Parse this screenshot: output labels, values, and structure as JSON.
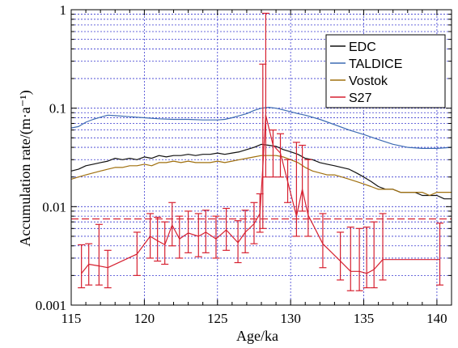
{
  "chart_data": {
    "type": "line",
    "xlabel": "Age/ka",
    "ylabel": "Accumulation rate/(m·a⁻¹)",
    "xlim": [
      115,
      141
    ],
    "ylim": [
      0.001,
      1
    ],
    "yscale": "log",
    "grid": true,
    "legend_position": "top-right",
    "x_ticks": [
      115,
      120,
      125,
      130,
      135,
      140
    ],
    "x_tick_labels": [
      "115",
      "120",
      "125",
      "130",
      "135",
      "140"
    ],
    "y_ticks": [
      0.001,
      0.01,
      0.1,
      1
    ],
    "y_tick_labels": [
      "0.001",
      "0.01",
      "0.1",
      "1"
    ],
    "reference_line": {
      "y": 0.0075,
      "color": "#d62030"
    },
    "series": [
      {
        "name": "EDC",
        "color": "#111111",
        "x": [
          115,
          115.5,
          116,
          116.5,
          117,
          117.5,
          118,
          118.5,
          119,
          119.5,
          120,
          120.5,
          121,
          121.5,
          122,
          122.5,
          123,
          123.5,
          124,
          124.5,
          125,
          125.5,
          126,
          126.5,
          127,
          127.5,
          128,
          128.5,
          129,
          129.5,
          130,
          130.5,
          131,
          131.5,
          132,
          132.5,
          133,
          133.5,
          134,
          134.5,
          135,
          135.5,
          136,
          136.5,
          137,
          137.5,
          138,
          138.5,
          139,
          139.5,
          140,
          140.5,
          141
        ],
        "values": [
          0.023,
          0.024,
          0.026,
          0.027,
          0.028,
          0.029,
          0.031,
          0.03,
          0.031,
          0.03,
          0.032,
          0.031,
          0.033,
          0.032,
          0.033,
          0.033,
          0.034,
          0.033,
          0.034,
          0.034,
          0.035,
          0.034,
          0.035,
          0.036,
          0.038,
          0.04,
          0.043,
          0.042,
          0.041,
          0.038,
          0.036,
          0.034,
          0.031,
          0.03,
          0.028,
          0.027,
          0.026,
          0.025,
          0.024,
          0.022,
          0.02,
          0.018,
          0.016,
          0.015,
          0.015,
          0.014,
          0.014,
          0.014,
          0.013,
          0.013,
          0.013,
          0.012,
          0.012
        ]
      },
      {
        "name": "TALDICE",
        "color": "#3d6bb3",
        "x": [
          115,
          115.5,
          116,
          116.5,
          117,
          117.5,
          118,
          119,
          120,
          121,
          122,
          123,
          124,
          125,
          125.5,
          126,
          126.5,
          127,
          127.5,
          128,
          128.5,
          129,
          129.5,
          130,
          130.5,
          131,
          132,
          133,
          134,
          135,
          136,
          137,
          138,
          139,
          140,
          141
        ],
        "values": [
          0.063,
          0.065,
          0.072,
          0.077,
          0.081,
          0.085,
          0.084,
          0.082,
          0.08,
          0.078,
          0.077,
          0.077,
          0.076,
          0.076,
          0.077,
          0.08,
          0.084,
          0.088,
          0.095,
          0.1,
          0.102,
          0.1,
          0.096,
          0.092,
          0.088,
          0.085,
          0.077,
          0.068,
          0.06,
          0.054,
          0.048,
          0.043,
          0.04,
          0.039,
          0.039,
          0.04
        ]
      },
      {
        "name": "Vostok",
        "color": "#a0700f",
        "x": [
          115,
          115.5,
          116,
          116.5,
          117,
          117.5,
          118,
          118.5,
          119,
          119.5,
          120,
          120.5,
          121,
          121.5,
          122,
          122.5,
          123,
          123.5,
          124,
          124.5,
          125,
          125.5,
          126,
          126.5,
          127,
          127.5,
          128,
          128.5,
          129,
          129.5,
          130,
          130.5,
          131,
          131.5,
          132,
          132.5,
          133,
          133.5,
          134,
          134.5,
          135,
          135.5,
          136,
          136.5,
          137,
          137.5,
          138,
          138.5,
          139,
          139.5,
          140,
          140.5,
          141
        ],
        "values": [
          0.019,
          0.02,
          0.021,
          0.022,
          0.023,
          0.024,
          0.025,
          0.025,
          0.026,
          0.026,
          0.027,
          0.026,
          0.028,
          0.028,
          0.029,
          0.028,
          0.029,
          0.028,
          0.028,
          0.028,
          0.029,
          0.028,
          0.029,
          0.03,
          0.031,
          0.032,
          0.033,
          0.033,
          0.033,
          0.032,
          0.03,
          0.028,
          0.025,
          0.023,
          0.022,
          0.021,
          0.021,
          0.02,
          0.019,
          0.018,
          0.017,
          0.016,
          0.015,
          0.015,
          0.015,
          0.014,
          0.014,
          0.014,
          0.014,
          0.013,
          0.014,
          0.014,
          0.014
        ]
      },
      {
        "name": "S27",
        "color": "#d62030",
        "x": [
          115.7,
          116.2,
          116.9,
          117.5,
          119.5,
          120.4,
          120.9,
          121.4,
          121.9,
          122.4,
          123.0,
          123.7,
          124.2,
          124.9,
          125.6,
          126.4,
          126.9,
          127.5,
          127.9,
          128.1,
          128.3,
          128.8,
          129.3,
          129.8,
          130.4,
          130.8,
          131.2,
          132.2,
          133.4,
          134.1,
          134.7,
          135.2,
          135.7,
          136.3,
          140.2
        ],
        "values": [
          0.0021,
          0.0026,
          0.0025,
          0.0024,
          0.0033,
          0.005,
          0.0045,
          0.0041,
          0.0065,
          0.0047,
          0.0054,
          0.005,
          0.0055,
          0.0047,
          0.0058,
          0.0043,
          0.0055,
          0.0067,
          0.0085,
          0.025,
          0.085,
          0.042,
          0.035,
          0.018,
          0.008,
          0.015,
          0.0082,
          0.0042,
          0.0028,
          0.0022,
          0.0022,
          0.0021,
          0.0023,
          0.0029,
          0.0029
        ],
        "err_low": [
          0.0015,
          0.0016,
          0.0016,
          0.0015,
          0.002,
          0.003,
          0.0028,
          0.0026,
          0.004,
          0.003,
          0.0034,
          0.0031,
          0.0034,
          0.003,
          0.0036,
          0.0027,
          0.0034,
          0.0042,
          0.0055,
          0.006,
          0.02,
          0.02,
          0.02,
          0.011,
          0.005,
          0.009,
          0.005,
          0.0024,
          0.0018,
          0.0014,
          0.0014,
          0.0015,
          0.0015,
          0.0018,
          0.0016
        ],
        "err_high": [
          0.0041,
          0.0042,
          0.0066,
          0.0036,
          0.0055,
          0.0085,
          0.0078,
          0.007,
          0.011,
          0.008,
          0.009,
          0.0085,
          0.0092,
          0.008,
          0.0096,
          0.0072,
          0.0092,
          0.011,
          0.0135,
          0.28,
          0.92,
          0.06,
          0.055,
          0.03,
          0.045,
          0.042,
          0.03,
          0.0085,
          0.0055,
          0.0062,
          0.006,
          0.0062,
          0.007,
          0.0085,
          0.0068
        ]
      }
    ]
  }
}
